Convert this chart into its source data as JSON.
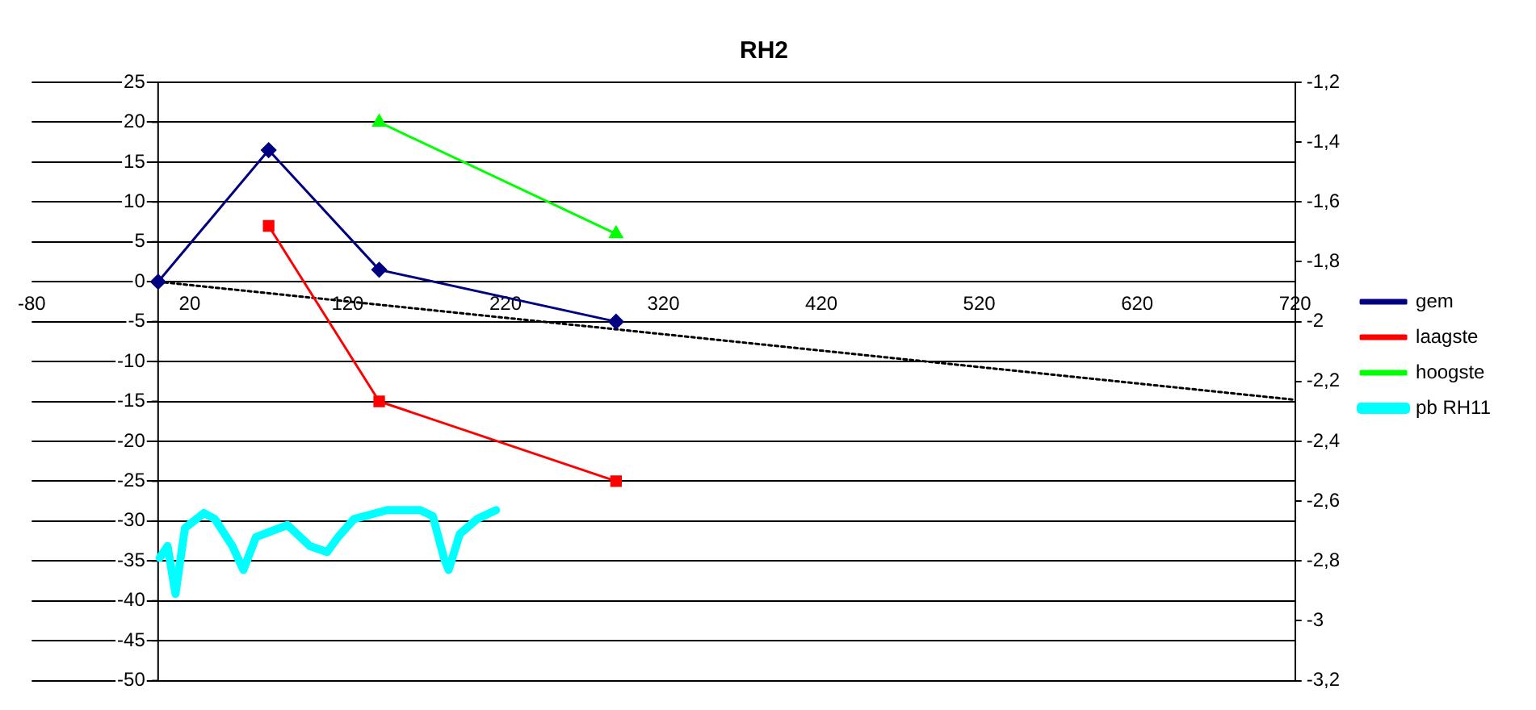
{
  "chart_data": {
    "type": "line",
    "title": "RH2",
    "xlim": [
      -80,
      720
    ],
    "xticks": [
      -80,
      20,
      120,
      220,
      320,
      420,
      520,
      620,
      720
    ],
    "ylim": [
      -50,
      25
    ],
    "yticks": [
      -50,
      -45,
      -40,
      -35,
      -30,
      -25,
      -20,
      -15,
      -10,
      -5,
      0,
      5,
      10,
      15,
      20,
      25
    ],
    "y2lim": [
      -3.2,
      -1.2
    ],
    "y2ticks": [
      {
        "value": -3.2,
        "label": "-3,2"
      },
      {
        "value": -3,
        "label": "-3"
      },
      {
        "value": -2.8,
        "label": "-2,8"
      },
      {
        "value": -2.6,
        "label": "-2,6"
      },
      {
        "value": -2.4,
        "label": "-2,4"
      },
      {
        "value": -2.2,
        "label": "-2,2"
      },
      {
        "value": -2,
        "label": "-2"
      },
      {
        "value": -1.8,
        "label": "-1,8"
      },
      {
        "value": -1.6,
        "label": "-1,6"
      },
      {
        "value": -1.4,
        "label": "-1,4"
      },
      {
        "value": -1.2,
        "label": "-1,2"
      }
    ],
    "grid": "y",
    "legend": "right",
    "series": [
      {
        "name": "gem",
        "color": "#000080",
        "marker": "diamond",
        "x": [
          0,
          70,
          140,
          290
        ],
        "values": [
          0,
          16.5,
          1.5,
          -5
        ]
      },
      {
        "name": "laagste",
        "color": "#ff0000",
        "marker": "square",
        "x": [
          70,
          140,
          290
        ],
        "values": [
          7,
          -15,
          -25
        ]
      },
      {
        "name": "hoogste",
        "color": "#00ff00",
        "marker": "triangle",
        "x": [
          140,
          290
        ],
        "values": [
          20,
          6
        ]
      },
      {
        "name": "pb RH11",
        "color": "#00ffff",
        "marker": "none",
        "axis": "y2",
        "x": [
          1,
          6,
          11,
          17,
          29,
          36,
          47,
          54,
          62,
          82,
          96,
          107,
          114,
          124,
          145,
          166,
          174,
          181,
          184,
          191,
          202,
          214
        ],
        "values": [
          -2.79,
          -2.75,
          -2.91,
          -2.69,
          -2.64,
          -2.66,
          -2.75,
          -2.83,
          -2.72,
          -2.68,
          -2.75,
          -2.77,
          -2.72,
          -2.66,
          -2.63,
          -2.63,
          -2.65,
          -2.79,
          -2.83,
          -2.71,
          -2.66,
          -2.63
        ]
      },
      {
        "type": "line",
        "color": "#000000",
        "marker": "none",
        "line_style": "dotted",
        "x": [
          0,
          720
        ],
        "values": [
          0,
          -14.8
        ]
      }
    ]
  }
}
